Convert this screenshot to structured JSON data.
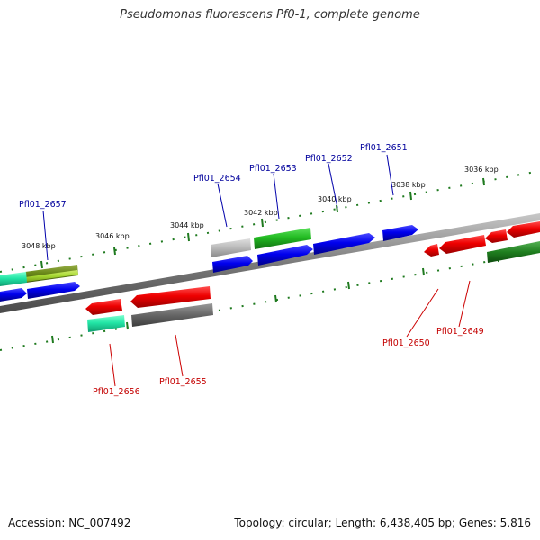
{
  "header": {
    "title": "Pseudomonas fluorescens Pf0-1, complete genome"
  },
  "footer": {
    "accession": "Accession: NC_007492",
    "summary": "Topology: circular; Length: 6,438,405 bp; Genes: 5,816"
  },
  "colors": {
    "forward_label": "#00009c",
    "reverse_label": "#c40000",
    "backbone": "#808080",
    "tick": "#1f7a1f"
  },
  "scale": {
    "ticks": [
      {
        "label": "3036 kbp"
      },
      {
        "label": "3038 kbp"
      },
      {
        "label": "3040 kbp"
      },
      {
        "label": "3042 kbp"
      },
      {
        "label": "3044 kbp"
      },
      {
        "label": "3046 kbp"
      },
      {
        "label": "3048 kbp"
      }
    ]
  },
  "genes": {
    "forward_labels": [
      "Pfl01_2651",
      "Pfl01_2652",
      "Pfl01_2653",
      "Pfl01_2654",
      "Pfl01_2657"
    ],
    "reverse_labels": [
      "Pfl01_2649",
      "Pfl01_2650",
      "Pfl01_2655",
      "Pfl01_2656"
    ]
  }
}
